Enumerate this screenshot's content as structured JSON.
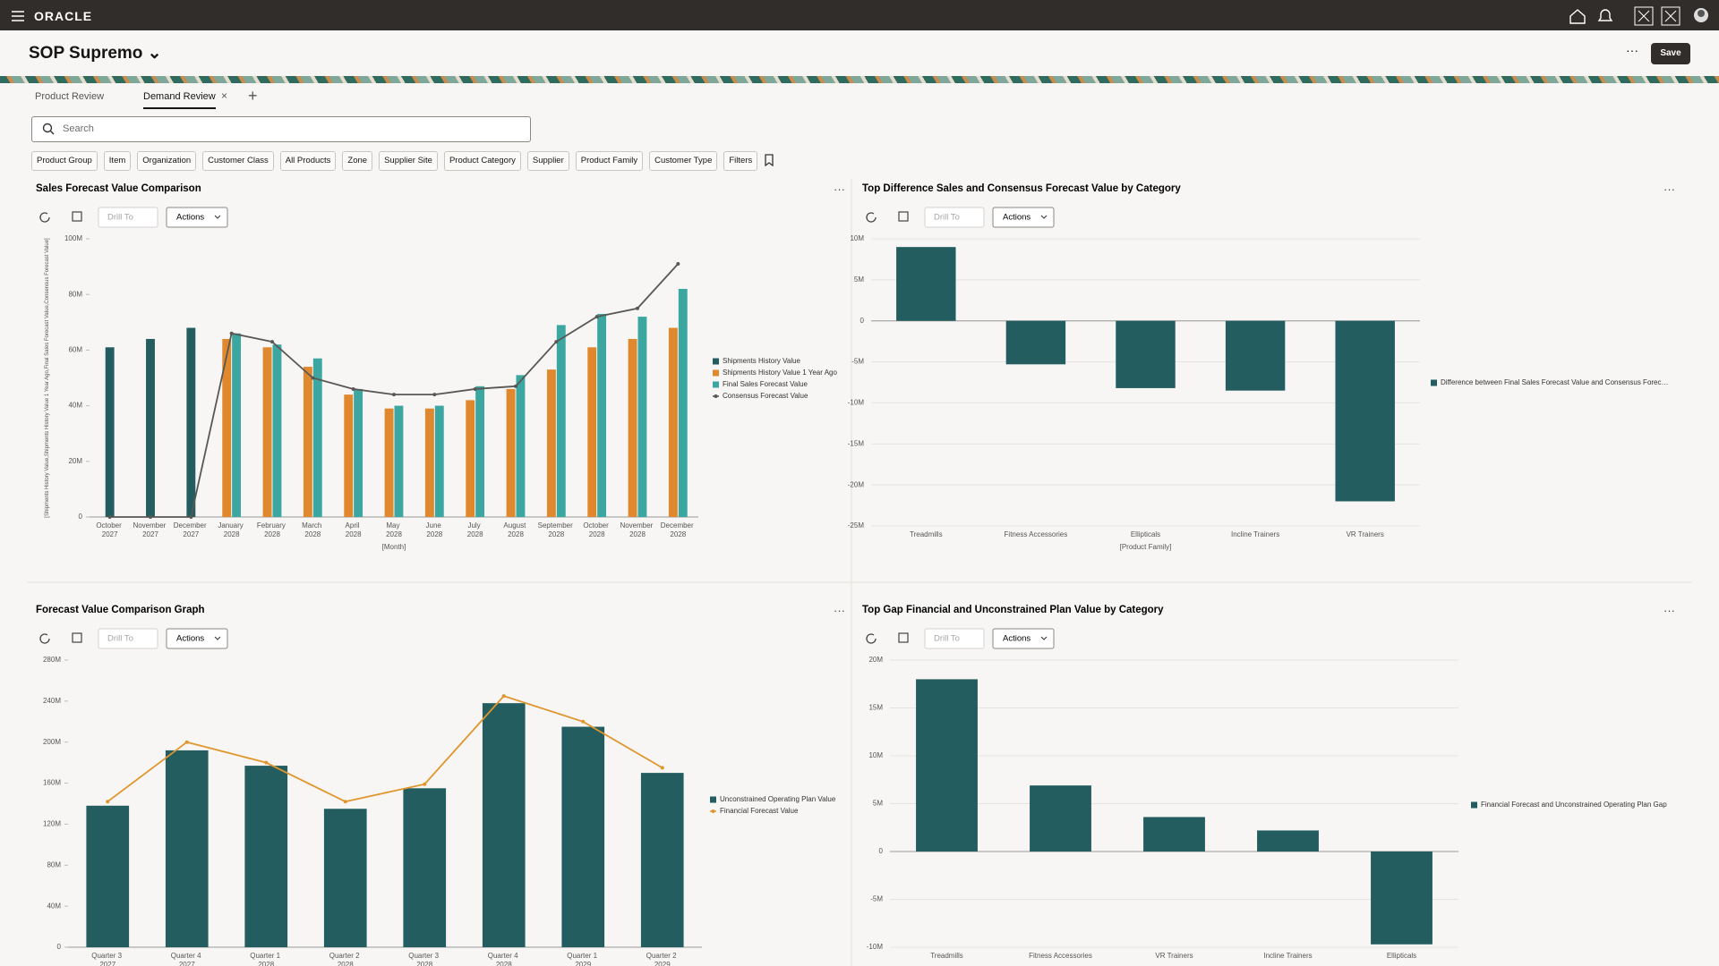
{
  "header": {
    "brand": "ORACLE",
    "title": "SOP Supremo",
    "save": "Save"
  },
  "tabs": [
    "Product Review",
    "Demand Review"
  ],
  "search_placeholder": "Search",
  "filters": [
    "Product Group",
    "Item",
    "Organization",
    "Customer Class",
    "All Products",
    "Zone",
    "Supplier Site",
    "Product Category",
    "Supplier",
    "Product Family",
    "Customer Type",
    "Filters"
  ],
  "toolbar": {
    "drill": "Drill To",
    "actions": "Actions"
  },
  "chart_data": [
    {
      "type": "bar",
      "title": "Sales Forecast Value Comparison",
      "x_label": "[Month]",
      "y_label": "[Shipments History Value,Shipments History Value 1 Year Ago,Final Sales Forecast Value,Consensus Forecast Value]",
      "categories": [
        "October 2027",
        "November 2027",
        "December 2027",
        "January 2028",
        "February 2028",
        "March 2028",
        "April 2028",
        "May 2028",
        "June 2028",
        "July 2028",
        "August 2028",
        "September 2028",
        "October 2028",
        "November 2028",
        "December 2028"
      ],
      "series": [
        {
          "name": "Shipments History Value",
          "color": "#235d5f",
          "values": [
            61000000,
            64000000,
            68000000,
            null,
            null,
            null,
            null,
            null,
            null,
            null,
            null,
            null,
            null,
            null,
            null
          ]
        },
        {
          "name": "Shipments History Value 1 Year Ago",
          "color": "#e0882d",
          "values": [
            null,
            null,
            null,
            64000000,
            61000000,
            54000000,
            44000000,
            39000000,
            39000000,
            42000000,
            46000000,
            53000000,
            61000000,
            64000000,
            68000000
          ]
        },
        {
          "name": "Final Sales Forecast Value",
          "color": "#3ba7a0",
          "values": [
            null,
            null,
            null,
            66000000,
            62000000,
            57000000,
            46000000,
            40000000,
            40000000,
            47000000,
            51000000,
            69000000,
            73000000,
            72000000,
            82000000
          ]
        },
        {
          "name": "Consensus Forecast Value",
          "type": "line",
          "color": "#5a5755",
          "values": [
            0,
            0,
            0,
            66000000,
            63000000,
            50000000,
            46000000,
            44000000,
            44000000,
            46000000,
            47000000,
            63000000,
            72000000,
            75000000,
            91000000
          ]
        }
      ],
      "ylim": [
        0,
        100000000
      ],
      "yticks": [
        0,
        {
          "value": 20000000,
          "label": "20M"
        },
        {
          "value": 40000000,
          "label": "40M"
        },
        {
          "value": 60000000,
          "label": "60M"
        },
        {
          "value": 80000000,
          "label": "80M"
        },
        {
          "value": 100000000,
          "label": "100M"
        }
      ],
      "grid": false
    },
    {
      "type": "bar",
      "title": "Top Difference Sales and Consensus Forecast Value by Category",
      "x_label": "[Product Family]",
      "categories": [
        "Treadmills",
        "Fitness Accessories",
        "Ellipticals",
        "Incline Trainers",
        "VR Trainers"
      ],
      "series": [
        {
          "name": "Difference between Final Sales Forecast Value and Consensus Forec…",
          "color": "#235d5f",
          "values": [
            9000000,
            -5300000,
            -8200000,
            -8500000,
            -22000000
          ]
        }
      ],
      "ylim": [
        -25000000,
        10000000
      ],
      "yticks": [
        {
          "value": -25000000,
          "label": "-25M"
        },
        {
          "value": -20000000,
          "label": "-20M"
        },
        {
          "value": -15000000,
          "label": "-15M"
        },
        {
          "value": -10000000,
          "label": "-10M"
        },
        {
          "value": -5000000,
          "label": "-5M"
        },
        0,
        {
          "value": 5000000,
          "label": "5M"
        },
        {
          "value": 10000000,
          "label": "10M"
        }
      ],
      "grid": true
    },
    {
      "type": "bar",
      "title": "Forecast Value Comparison Graph",
      "categories": [
        "Quarter 3 2027",
        "Quarter 4 2027",
        "Quarter 1 2028",
        "Quarter 2 2028",
        "Quarter 3 2028",
        "Quarter 4 2028",
        "Quarter 1 2029",
        "Quarter 2 2029"
      ],
      "series": [
        {
          "name": "Unconstrained Operating Plan Value",
          "color": "#235d5f",
          "values": [
            138000000,
            192000000,
            177000000,
            135000000,
            155000000,
            238000000,
            215000000,
            170000000
          ]
        },
        {
          "name": "Financial Forecast Value",
          "type": "line",
          "color": "#e0962d",
          "values": [
            142000000,
            200000000,
            180000000,
            142000000,
            159000000,
            245000000,
            220000000,
            175000000
          ]
        }
      ],
      "ylim": [
        0,
        280000000
      ],
      "yticks": [
        0,
        {
          "value": 40000000,
          "label": "40M"
        },
        {
          "value": 80000000,
          "label": "80M"
        },
        {
          "value": 120000000,
          "label": "120M"
        },
        {
          "value": 160000000,
          "label": "160M"
        },
        {
          "value": 200000000,
          "label": "200M"
        },
        {
          "value": 240000000,
          "label": "240M"
        },
        {
          "value": 280000000,
          "label": "280M"
        }
      ],
      "grid": false
    },
    {
      "type": "bar",
      "title": "Top Gap Financial and Unconstrained Plan Value by Category",
      "categories": [
        "Treadmills",
        "Fitness Accessories",
        "VR Trainers",
        "Incline Trainers",
        "Ellipticals"
      ],
      "series": [
        {
          "name": "Financial Forecast and Unconstrained Operating Plan Gap",
          "color": "#235d5f",
          "values": [
            18000000,
            6900000,
            3600000,
            2200000,
            -9700000
          ]
        }
      ],
      "ylim": [
        -10000000,
        20000000
      ],
      "yticks": [
        {
          "value": -10000000,
          "label": "-10M"
        },
        {
          "value": -5000000,
          "label": "-5M"
        },
        0,
        {
          "value": 5000000,
          "label": "5M"
        },
        {
          "value": 10000000,
          "label": "10M"
        },
        {
          "value": 15000000,
          "label": "15M"
        },
        {
          "value": 20000000,
          "label": "20M"
        }
      ],
      "grid": true
    }
  ]
}
